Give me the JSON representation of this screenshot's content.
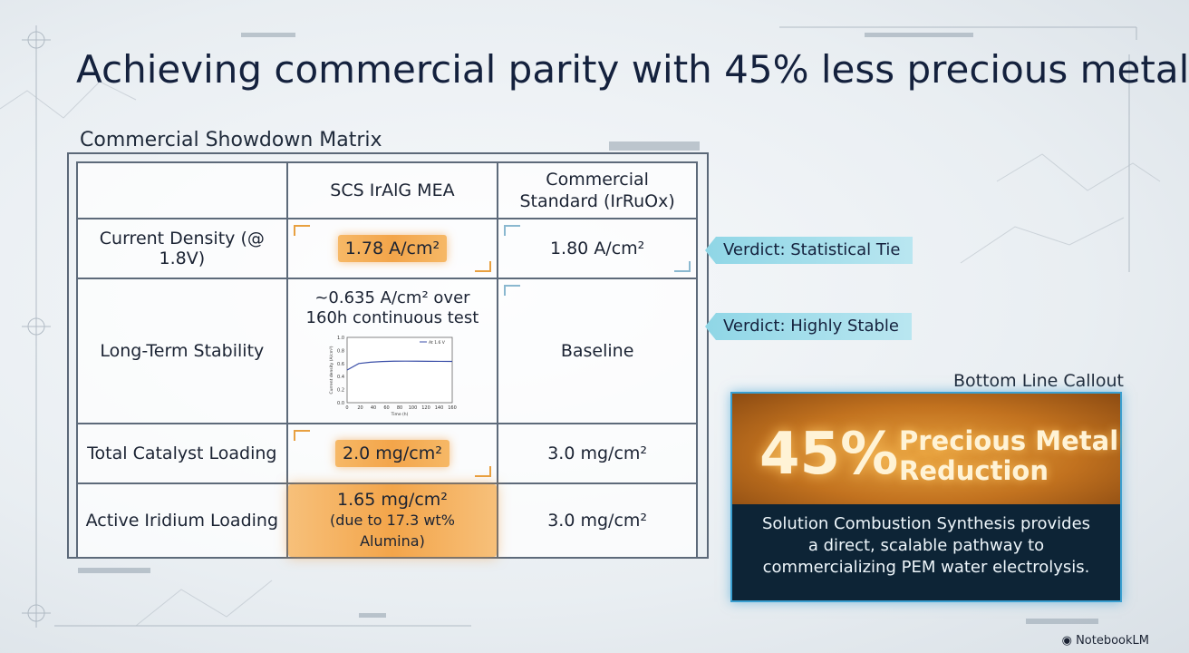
{
  "title": "Achieving commercial parity with 45% less precious metal",
  "matrix": {
    "label": "Commercial Showdown Matrix",
    "headers": [
      "",
      "SCS IrAlG MEA",
      "Commercial Standard (IrRuOx)"
    ],
    "rows": [
      {
        "label": "Current Density (@ 1.8V)",
        "scs": "1.78 A/cm²",
        "commercial": "1.80 A/cm²"
      },
      {
        "label": "Long-Term Stability",
        "scs": "~0.635 A/cm² over 160h continuous test",
        "commercial": "Baseline"
      },
      {
        "label": "Total Catalyst Loading",
        "scs": "2.0 mg/cm²",
        "commercial": "3.0 mg/cm²"
      },
      {
        "label": "Active Iridium Loading",
        "scs": "1.65 mg/cm²",
        "scs_note": "(due to 17.3 wt% Alumina)",
        "commercial": "3.0 mg/cm²"
      }
    ]
  },
  "verdicts": [
    "Verdict: Statistical Tie",
    "Verdict: Highly Stable"
  ],
  "callout": {
    "label": "Bottom Line Callout",
    "big_number": "45%",
    "big_text_line1": "Precious Metal",
    "big_text_line2": "Reduction",
    "body_line1": "Solution Combustion Synthesis provides",
    "body_line2": "a direct, scalable pathway to",
    "body_line3": "commercializing PEM water electrolysis."
  },
  "mini_chart": {
    "ylabel": "Current density (A/cm²)",
    "xlabel": "Time (h)",
    "legend": "At 1.6 V",
    "x_ticks": [
      "0",
      "20",
      "40",
      "60",
      "80",
      "100",
      "120",
      "140",
      "160"
    ],
    "y_ticks": [
      "1.0",
      "0.8",
      "0.6",
      "0.4",
      "0.2",
      "0.0"
    ],
    "series": [
      0.5,
      0.6,
      0.62,
      0.63,
      0.635,
      0.636,
      0.635,
      0.634,
      0.633,
      0.632
    ],
    "color": "#3b4fa8"
  },
  "colors": {
    "accent": "#f3a54a",
    "verdict": "#8fd6e6",
    "callout_border": "#3a9fd0"
  },
  "brand": "NotebookLM"
}
